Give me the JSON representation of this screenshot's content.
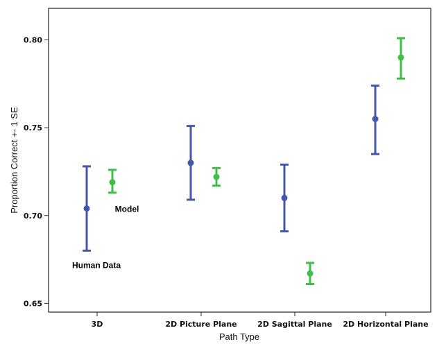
{
  "chart_data": {
    "type": "errorbar",
    "xlabel": "Path Type",
    "ylabel": "Proportion Correct +- 1 SE",
    "categories": [
      "3D",
      "2D Picture Plane",
      "2D Sagittal Plane",
      "2D Horizontal Plane"
    ],
    "ylim": [
      0.645,
      0.818
    ],
    "yticks": [
      "0.65",
      "0.70",
      "0.75",
      "0.80"
    ],
    "grid": false,
    "series": [
      {
        "color": "#4457a8",
        "means": [
          0.704,
          0.73,
          0.71,
          0.755
        ],
        "lower": [
          0.68,
          0.709,
          0.691,
          0.735
        ],
        "upper": [
          0.728,
          0.751,
          0.729,
          0.774
        ]
      },
      {
        "color": "#3fbf4a",
        "means": [
          0.719,
          0.722,
          0.667,
          0.79
        ],
        "lower": [
          0.713,
          0.717,
          0.661,
          0.778
        ],
        "upper": [
          0.726,
          0.727,
          0.673,
          0.801
        ]
      }
    ],
    "annotations": [
      {
        "text": "Model",
        "category": "3D",
        "y": 0.702
      },
      {
        "text": "Human Data",
        "category": "3D",
        "y": 0.67
      }
    ]
  }
}
